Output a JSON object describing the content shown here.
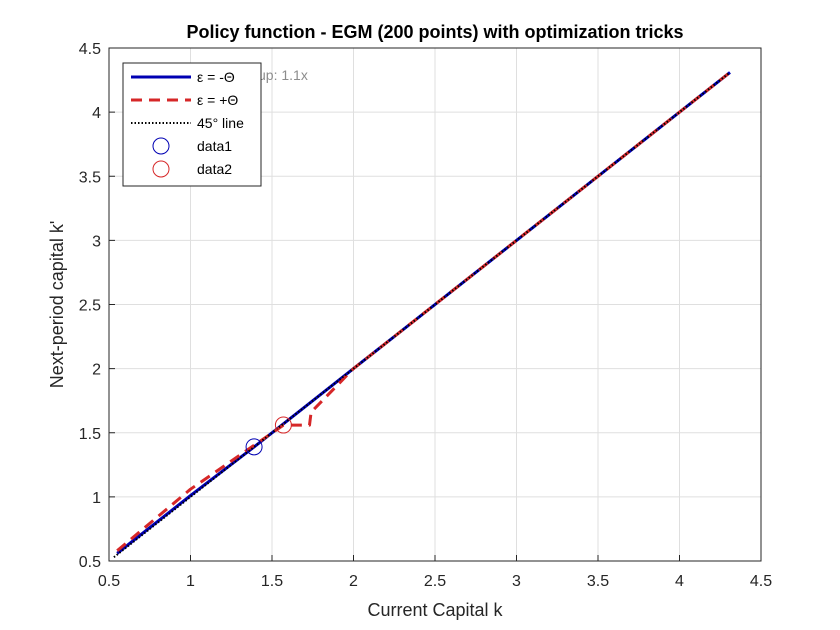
{
  "chart_data": {
    "type": "line",
    "title": "Policy function - EGM (200 points) with optimization tricks",
    "xlabel": "Current Capital k",
    "ylabel": "Next-period capital k'",
    "xlim": [
      0.5,
      4.5
    ],
    "ylim": [
      0.5,
      4.5
    ],
    "xticks": [
      "0.5",
      "1",
      "1.5",
      "2",
      "2.5",
      "3",
      "3.5",
      "4",
      "4.5"
    ],
    "yticks": [
      "0.5",
      "1",
      "1.5",
      "2",
      "2.5",
      "3",
      "3.5",
      "4",
      "4.5"
    ],
    "grid": true,
    "legend_position": "top-left",
    "annotation": "up: 1.1x",
    "series": [
      {
        "name": "ε = -Θ",
        "style": "solid",
        "color": "#0000b3",
        "x": [
          0.55,
          1.0,
          1.39,
          2.0,
          3.0,
          4.31
        ],
        "y": [
          0.56,
          1.01,
          1.39,
          2.0,
          3.0,
          4.31
        ]
      },
      {
        "name": "ε = +Θ",
        "style": "dashed",
        "color": "#d62728",
        "x": [
          0.55,
          1.0,
          1.57,
          1.73,
          1.74,
          2.0,
          3.0,
          4.31
        ],
        "y": [
          0.58,
          1.06,
          1.56,
          1.56,
          1.66,
          2.0,
          3.0,
          4.31
        ]
      },
      {
        "name": "45° line",
        "style": "dotted",
        "color": "#000000",
        "x": [
          0.53,
          4.31
        ],
        "y": [
          0.53,
          4.31
        ]
      },
      {
        "name": "data1",
        "style": "marker",
        "color": "#0000b3",
        "x": [
          1.39
        ],
        "y": [
          1.39
        ]
      },
      {
        "name": "data2",
        "style": "marker",
        "color": "#d62728",
        "x": [
          1.57
        ],
        "y": [
          1.56
        ]
      }
    ]
  }
}
